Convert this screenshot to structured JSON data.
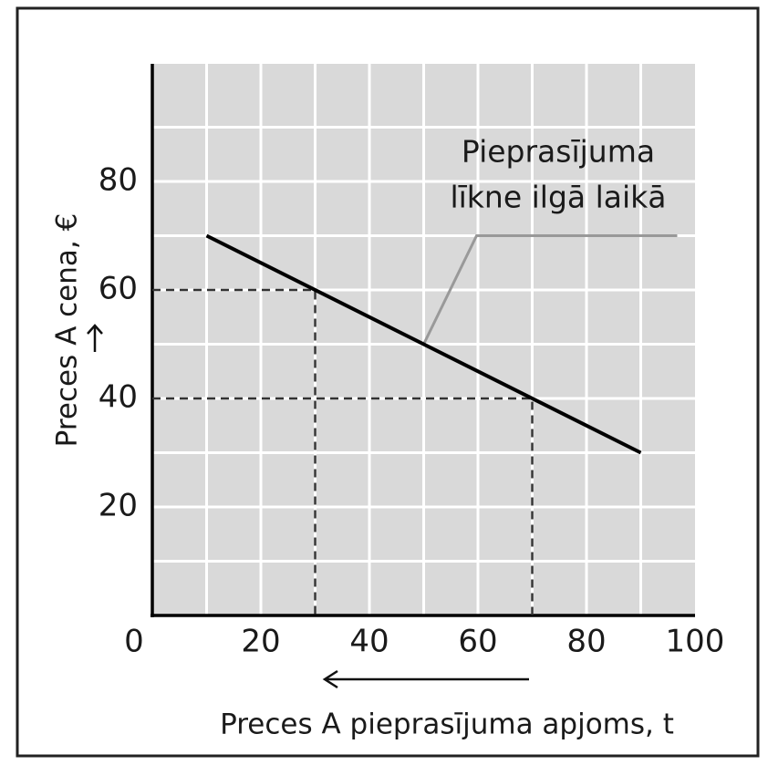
{
  "chart_data": {
    "type": "line",
    "xlabel": "Preces A pieprasījuma apjoms, t",
    "ylabel": "Preces A cena, €",
    "xlim": [
      0,
      100
    ],
    "ylim": [
      0,
      100
    ],
    "xticks": [
      0,
      20,
      40,
      60,
      80,
      100
    ],
    "yticks": [
      20,
      40,
      60,
      80
    ],
    "grid": {
      "x": [
        10,
        20,
        30,
        40,
        50,
        60,
        70,
        80,
        90
      ],
      "y": [
        10,
        20,
        30,
        40,
        50,
        60,
        70,
        80,
        90
      ]
    },
    "series": [
      {
        "name": "Pieprasījuma līkne ilgā laikā",
        "color": "#000000",
        "x": [
          10,
          90
        ],
        "values": [
          70,
          30
        ]
      }
    ],
    "reference_points": [
      {
        "x": 30,
        "y": 60
      },
      {
        "x": 70,
        "y": 40
      }
    ],
    "annotation": {
      "lines": [
        "Pieprasījuma",
        "līkne ilgā laikā"
      ],
      "x": 50,
      "y": 50
    }
  }
}
